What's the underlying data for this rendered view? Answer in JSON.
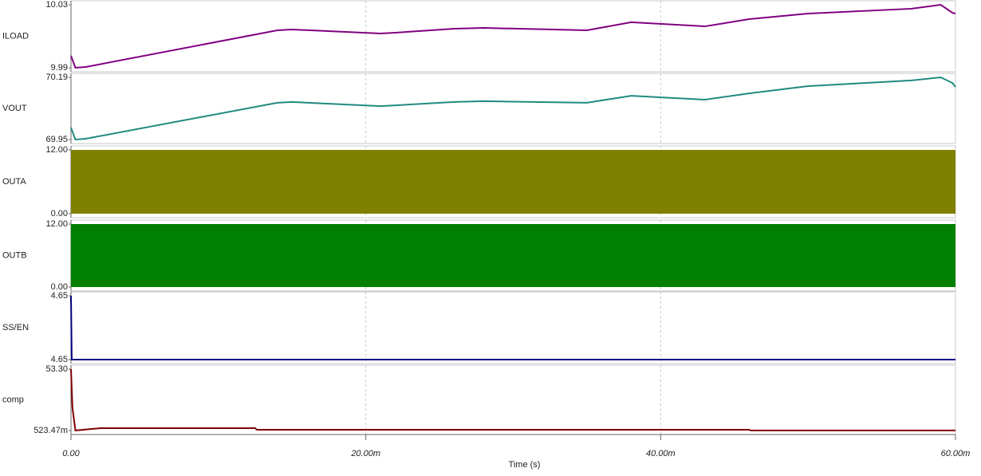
{
  "chart_data": [
    {
      "type": "line",
      "ylabel": "ILOAD",
      "xlim": [
        0,
        0.06
      ],
      "ylim": [
        9.99,
        10.03
      ],
      "yticks": [
        10.03,
        9.99
      ],
      "x": [
        0,
        0.0003,
        0.001,
        0.014,
        0.015,
        0.021,
        0.022,
        0.026,
        0.028,
        0.035,
        0.038,
        0.043,
        0.046,
        0.05,
        0.057,
        0.059,
        0.0598,
        0.06
      ],
      "series": [
        {
          "color": "#800080",
          "values": [
            9.9976,
            9.99,
            9.9905,
            10.0138,
            10.0143,
            10.0118,
            10.0123,
            10.0148,
            10.0153,
            10.0138,
            10.0189,
            10.0163,
            10.0209,
            10.0244,
            10.0275,
            10.03,
            10.0249,
            10.0244
          ]
        }
      ]
    },
    {
      "type": "line",
      "ylabel": "VOUT",
      "xlim": [
        0,
        0.06
      ],
      "ylim": [
        69.95,
        70.19
      ],
      "yticks": [
        70.19,
        69.95
      ],
      "x": [
        0,
        0.0003,
        0.001,
        0.014,
        0.015,
        0.021,
        0.022,
        0.026,
        0.028,
        0.035,
        0.038,
        0.043,
        0.046,
        0.05,
        0.057,
        0.059,
        0.0598,
        0.06
      ],
      "series": [
        {
          "color": "#1f8a80",
          "values": [
            69.996,
            69.95,
            69.953,
            70.092,
            70.095,
            70.079,
            70.082,
            70.095,
            70.098,
            70.092,
            70.119,
            70.104,
            70.128,
            70.156,
            70.178,
            70.19,
            70.168,
            70.153
          ]
        }
      ]
    },
    {
      "type": "area",
      "ylabel": "OUTA",
      "xlim": [
        0,
        0.06
      ],
      "ylim": [
        0,
        12
      ],
      "yticks": [
        {
          "value": 12,
          "label": "12.00"
        },
        {
          "value": 0,
          "label": "0.00"
        }
      ],
      "x": [
        0,
        0.06
      ],
      "series": [
        {
          "color": "#808000",
          "values": [
            12,
            12
          ]
        }
      ]
    },
    {
      "type": "area",
      "ylabel": "OUTB",
      "xlim": [
        0,
        0.06
      ],
      "ylim": [
        0,
        12
      ],
      "yticks": [
        {
          "value": 12,
          "label": "12.00"
        },
        {
          "value": 0,
          "label": "0.00"
        }
      ],
      "x": [
        0,
        0.06
      ],
      "series": [
        {
          "color": "#008000",
          "values": [
            12,
            12
          ]
        }
      ]
    },
    {
      "type": "line",
      "ylabel": "SS/EN",
      "xlim": [
        0,
        0.06
      ],
      "ylim": [
        4.645,
        4.654
      ],
      "yticks": [
        {
          "value": 4.654,
          "label": "4.65"
        },
        {
          "value": 4.645,
          "label": "4.65"
        }
      ],
      "x": [
        0,
        5e-05,
        0.06
      ],
      "series": [
        {
          "color": "#000080",
          "values": [
            4.654,
            4.645,
            4.645
          ]
        }
      ]
    },
    {
      "type": "line",
      "ylabel": "comp",
      "xlim": [
        0,
        0.06
      ],
      "ylim": [
        0.52347,
        53.3
      ],
      "yticks": [
        {
          "value": 53.3,
          "label": "53.30"
        },
        {
          "value": 0.52347,
          "label": "523.47m"
        }
      ],
      "x": [
        0,
        0.0001,
        0.0003,
        0.002,
        0.0125,
        0.0126,
        0.046,
        0.0461,
        0.06
      ],
      "series": [
        {
          "color": "#800000",
          "values": [
            53.3,
            20,
            0.6,
            2.58,
            2.58,
            1.2,
            1.2,
            0.6,
            0.6
          ]
        }
      ],
      "xlabel": "Time (s)",
      "xticks": [
        {
          "value": 0,
          "label": "0.00"
        },
        {
          "value": 0.02,
          "label": "20.00m"
        },
        {
          "value": 0.04,
          "label": "40.00m"
        },
        {
          "value": 0.06,
          "label": "60.00m"
        }
      ]
    }
  ]
}
